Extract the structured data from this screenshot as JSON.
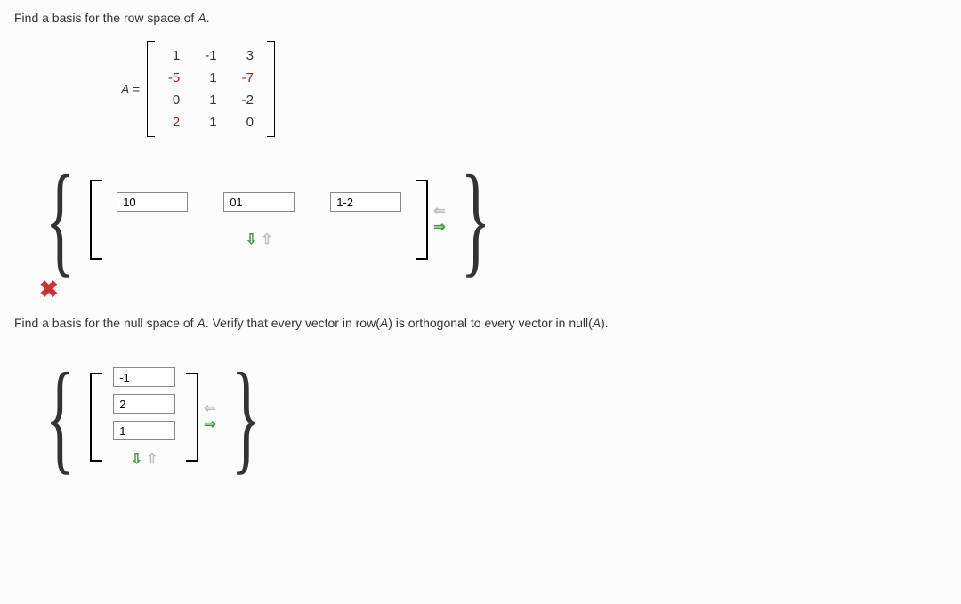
{
  "q1": {
    "prompt_pre": "Find a basis for the row space of ",
    "var": "A",
    "prompt_post": "."
  },
  "matrixA": {
    "label": "A =",
    "rows": [
      [
        {
          "v": "1",
          "c": "#333"
        },
        {
          "v": "-1",
          "c": "#333"
        },
        {
          "v": "3",
          "c": "#333"
        }
      ],
      [
        {
          "v": "-5",
          "c": "#b02020"
        },
        {
          "v": "1",
          "c": "#333"
        },
        {
          "v": "-7",
          "c": "#b02020"
        }
      ],
      [
        {
          "v": "0",
          "c": "#333"
        },
        {
          "v": "1",
          "c": "#333"
        },
        {
          "v": "-2",
          "c": "#333"
        }
      ],
      [
        {
          "v": "2",
          "c": "#b02020"
        },
        {
          "v": "1",
          "c": "#333"
        },
        {
          "v": "0",
          "c": "#333"
        }
      ]
    ]
  },
  "rowAnswer": {
    "inputs": [
      "10",
      "01",
      "1-2"
    ],
    "extraRowArrows": true,
    "colArrows": true,
    "incorrect": true
  },
  "q2": {
    "prompt_pre": "Find a basis for the null space of ",
    "var": "A",
    "prompt_mid": ". Verify that every vector in row(",
    "var2": "A",
    "prompt_mid2": ") is orthogonal to every vector in null(",
    "var3": "A",
    "prompt_post": ")."
  },
  "nullAnswer": {
    "inputs": [
      "-1",
      "2",
      "1"
    ],
    "extraRowArrows": true,
    "colArrows": true
  },
  "glyphs": {
    "x": "✖",
    "left": "⇐",
    "right": "⇒",
    "up": "⇧",
    "down": "⇩"
  }
}
